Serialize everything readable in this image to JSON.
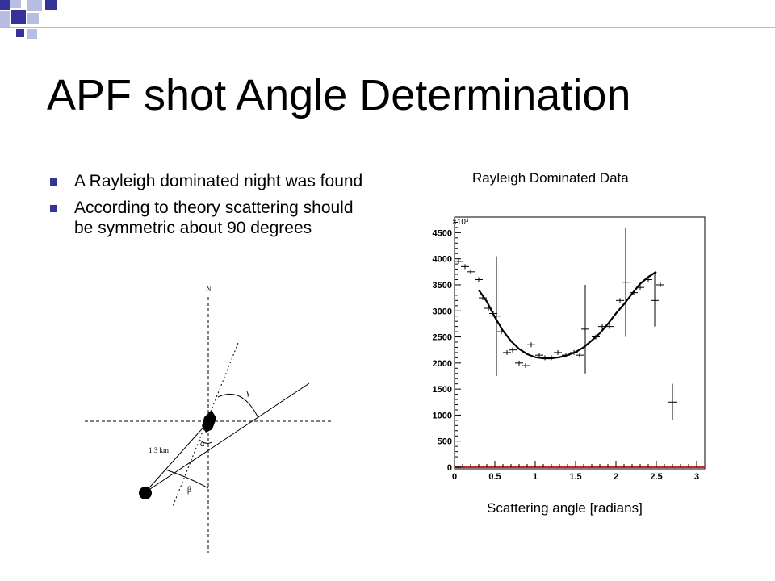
{
  "slide": {
    "title": "APF shot Angle Determination",
    "bullets": [
      "A Rayleigh dominated night was found",
      "According to theory scattering should be symmetric about 90 degrees"
    ],
    "accent_colors": {
      "dark_square": "#33339a",
      "light_square": "#b8bde3",
      "rule_line": "#b3b8df"
    }
  },
  "diagram": {
    "north_label": "N",
    "distance_label": "1.3 km",
    "angle_labels": {
      "gamma": "γ",
      "alpha": "α",
      "beta": "β"
    }
  },
  "plot_title": "Rayleigh Dominated Data",
  "x_caption": "Scattering angle [radians]",
  "chart_data": {
    "type": "scatter",
    "title": "Rayleigh Dominated Data",
    "xlabel": "Scattering angle [radians]",
    "ylabel": "",
    "y_multiplier_label": "×10³",
    "xlim": [
      0,
      3.1
    ],
    "ylim": [
      0,
      4800
    ],
    "x_ticks": [
      0,
      0.5,
      1,
      1.5,
      2,
      2.5,
      3
    ],
    "x_tick_labels": [
      "0",
      "0.5",
      "1",
      "1.5",
      "2",
      "2.5",
      "3"
    ],
    "y_ticks": [
      0,
      500,
      1000,
      1500,
      2000,
      2500,
      3000,
      3500,
      4000,
      4500
    ],
    "y_tick_labels": [
      "0",
      "500",
      "1000",
      "1500",
      "2000",
      "2500",
      "3000",
      "3500",
      "4000",
      "4500"
    ],
    "grid": false,
    "points": [
      {
        "x": 0.05,
        "y": 3950,
        "err": 0
      },
      {
        "x": 0.13,
        "y": 3850,
        "err": 0
      },
      {
        "x": 0.2,
        "y": 3750,
        "err": 0
      },
      {
        "x": 0.3,
        "y": 3600,
        "err": 0
      },
      {
        "x": 0.35,
        "y": 3250,
        "err": 0
      },
      {
        "x": 0.42,
        "y": 3050,
        "err": 0
      },
      {
        "x": 0.48,
        "y": 2950,
        "err": 0
      },
      {
        "x": 0.52,
        "y": 2900,
        "err": 1150
      },
      {
        "x": 0.58,
        "y": 2600,
        "err": 0
      },
      {
        "x": 0.65,
        "y": 2200,
        "err": 0
      },
      {
        "x": 0.72,
        "y": 2250,
        "err": 0
      },
      {
        "x": 0.8,
        "y": 2000,
        "err": 0
      },
      {
        "x": 0.88,
        "y": 1950,
        "err": 0
      },
      {
        "x": 0.95,
        "y": 2350,
        "err": 0
      },
      {
        "x": 1.05,
        "y": 2150,
        "err": 0
      },
      {
        "x": 1.12,
        "y": 2100,
        "err": 0
      },
      {
        "x": 1.2,
        "y": 2100,
        "err": 0
      },
      {
        "x": 1.28,
        "y": 2200,
        "err": 0
      },
      {
        "x": 1.38,
        "y": 2150,
        "err": 0
      },
      {
        "x": 1.48,
        "y": 2200,
        "err": 0
      },
      {
        "x": 1.55,
        "y": 2150,
        "err": 0
      },
      {
        "x": 1.62,
        "y": 2650,
        "err": 850
      },
      {
        "x": 1.75,
        "y": 2500,
        "err": 0
      },
      {
        "x": 1.83,
        "y": 2700,
        "err": 0
      },
      {
        "x": 1.92,
        "y": 2700,
        "err": 0
      },
      {
        "x": 2.05,
        "y": 3200,
        "err": 0
      },
      {
        "x": 2.12,
        "y": 3550,
        "err": 1050
      },
      {
        "x": 2.22,
        "y": 3350,
        "err": 0
      },
      {
        "x": 2.3,
        "y": 3450,
        "err": 0
      },
      {
        "x": 2.4,
        "y": 3600,
        "err": 0
      },
      {
        "x": 2.48,
        "y": 3200,
        "err": 500
      },
      {
        "x": 2.55,
        "y": 3500,
        "err": 0
      },
      {
        "x": 2.7,
        "y": 1250,
        "err": 350
      }
    ],
    "fit_curve": {
      "name": "fit",
      "x": [
        0.3,
        0.4,
        0.5,
        0.6,
        0.7,
        0.8,
        0.9,
        1.0,
        1.1,
        1.2,
        1.3,
        1.4,
        1.5,
        1.6,
        1.7,
        1.8,
        1.9,
        2.0,
        2.1,
        2.2,
        2.3,
        2.4,
        2.5
      ],
      "y": [
        3400,
        3180,
        2880,
        2620,
        2420,
        2270,
        2170,
        2110,
        2090,
        2090,
        2110,
        2150,
        2210,
        2300,
        2430,
        2570,
        2750,
        2950,
        3130,
        3330,
        3520,
        3650,
        3750
      ]
    }
  }
}
